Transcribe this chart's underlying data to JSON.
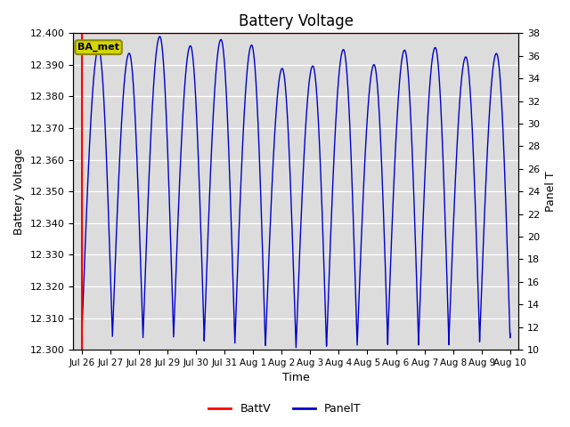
{
  "title": "Battery Voltage",
  "ylabel_left": "Battery Voltage",
  "ylabel_right": "Panel T",
  "xlabel": "Time",
  "ylim_left": [
    12.3,
    12.4
  ],
  "ylim_right": [
    10,
    38
  ],
  "yticks_left": [
    12.3,
    12.31,
    12.32,
    12.33,
    12.34,
    12.35,
    12.36,
    12.37,
    12.38,
    12.39,
    12.4
  ],
  "yticks_right": [
    10,
    12,
    14,
    16,
    18,
    20,
    22,
    24,
    26,
    28,
    30,
    32,
    34,
    36,
    38
  ],
  "xtick_labels": [
    "Jul 26",
    "Jul 27",
    "Jul 28",
    "Jul 29",
    "Jul 30",
    "Jul 31",
    "Aug 1",
    "Aug 2",
    "Aug 3",
    "Aug 4",
    "Aug 5",
    "Aug 6",
    "Aug 7",
    "Aug 8",
    "Aug 9",
    "Aug 10"
  ],
  "battv_color": "#ff0000",
  "panelt_color": "#0000cc",
  "background_color": "#dcdcdc",
  "annotation_text": "BA_met",
  "annotation_facecolor": "#d4d400",
  "annotation_edgecolor": "#8b8b00",
  "hline_y": 12.4,
  "xlim": [
    -0.3,
    15.3
  ],
  "n_cycles": 14,
  "n_points": 3000,
  "peak_variation_seed": 99
}
